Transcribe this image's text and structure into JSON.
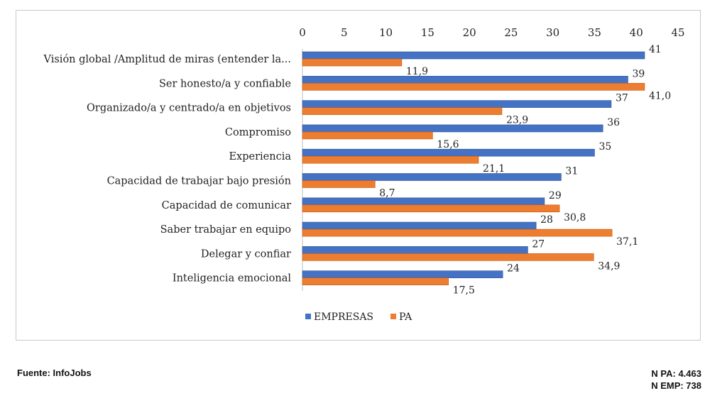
{
  "chart_data": {
    "type": "bar",
    "orientation": "horizontal",
    "categories": [
      "Visión global /Amplitud de miras (entender la...",
      "Ser honesto/a y confiable",
      "Organizado/a y centrado/a en objetivos",
      "Compromiso",
      "Experiencia",
      "Capacidad de trabajar bajo presión",
      "Capacidad de comunicar",
      "Saber trabajar en equipo",
      "Delegar y confiar",
      "Inteligencia emocional"
    ],
    "series": [
      {
        "name": "EMPRESAS",
        "color": "#4472c4",
        "values": [
          41,
          39,
          37,
          36,
          35,
          31,
          29,
          28,
          27,
          24
        ],
        "labels": [
          "41",
          "39",
          "37",
          "36",
          "35",
          "31",
          "29",
          "28",
          "27",
          "24"
        ]
      },
      {
        "name": "PA",
        "color": "#ed7d31",
        "values": [
          11.9,
          41.0,
          23.9,
          15.6,
          21.1,
          8.7,
          30.8,
          37.1,
          34.9,
          17.5
        ],
        "labels": [
          "11,9",
          "41,0",
          "23,9",
          "15,6",
          "21,1",
          "8,7",
          "30,8",
          "37,1",
          "34,9",
          "17,5"
        ]
      }
    ],
    "xlim": [
      0,
      45
    ],
    "xticks": [
      "0",
      "5",
      "10",
      "15",
      "20",
      "25",
      "30",
      "35",
      "40",
      "45"
    ],
    "x_axis_position": "top",
    "grid": false,
    "legend": "bottom-center"
  },
  "footer": {
    "source": "Fuente: InfoJobs",
    "n_pa": "N PA: 4.463",
    "n_emp": "N EMP: 738"
  }
}
